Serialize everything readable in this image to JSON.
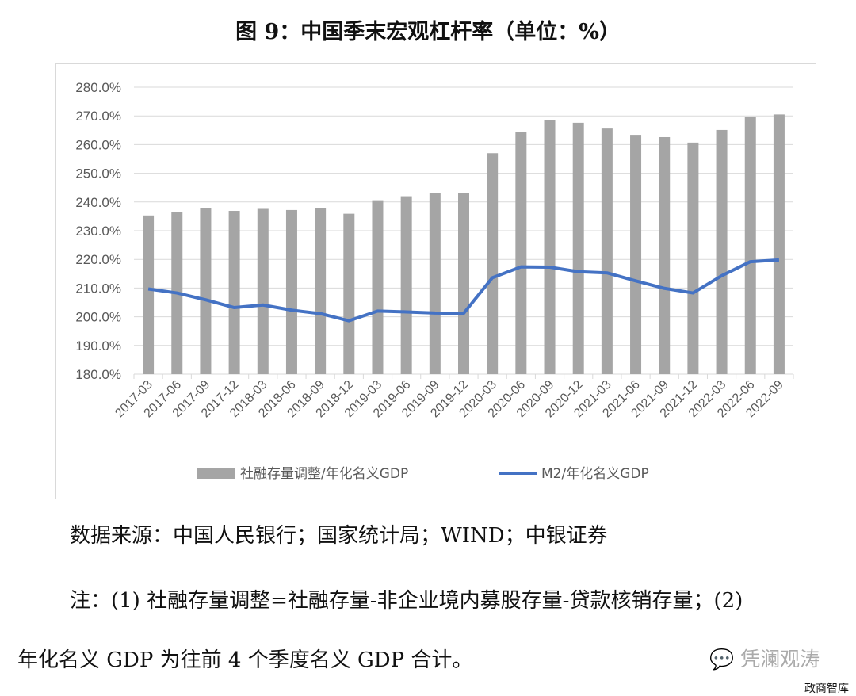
{
  "title": "图 9：中国季末宏观杠杆率（单位：%）",
  "chart_data": {
    "type": "bar+line",
    "title": "图 9：中国季末宏观杠杆率（单位：%）",
    "categories": [
      "2017-03",
      "2017-06",
      "2017-09",
      "2017-12",
      "2018-03",
      "2018-06",
      "2018-09",
      "2018-12",
      "2019-03",
      "2019-06",
      "2019-09",
      "2019-12",
      "2020-03",
      "2020-06",
      "2020-09",
      "2020-12",
      "2021-03",
      "2021-06",
      "2021-09",
      "2021-12",
      "2022-03",
      "2022-06",
      "2022-09"
    ],
    "series": [
      {
        "name": "社融存量调整/年化名义GDP",
        "type": "bar",
        "color": "#a5a5a5",
        "values": [
          235.3,
          236.6,
          237.8,
          236.9,
          237.6,
          237.2,
          237.9,
          235.9,
          240.6,
          242.0,
          243.2,
          243.0,
          257.0,
          264.4,
          268.6,
          267.6,
          265.6,
          263.4,
          262.6,
          260.7,
          265.1,
          269.7,
          270.5
        ]
      },
      {
        "name": "M2/年化名义GDP",
        "type": "line",
        "color": "#4472c4",
        "values": [
          209.7,
          208.3,
          205.9,
          203.2,
          204.1,
          202.3,
          201.1,
          198.6,
          202.0,
          201.7,
          201.3,
          201.2,
          213.6,
          217.4,
          217.3,
          215.7,
          215.3,
          212.5,
          209.9,
          208.3,
          214.3,
          219.2,
          219.8
        ]
      }
    ],
    "ylim": [
      180,
      280
    ],
    "yticks": [
      "180.0%",
      "190.0%",
      "200.0%",
      "210.0%",
      "220.0%",
      "230.0%",
      "240.0%",
      "250.0%",
      "260.0%",
      "270.0%",
      "280.0%"
    ],
    "grid": true,
    "legend": "bottom"
  },
  "source": "数据来源：中国人民银行；国家统计局；WIND；中银证券",
  "note_line1": "注：(1) 社融存量调整=社融存量-非企业境内募股存量-贷款核销存量；(2)",
  "note_line2": "年化名义 GDP 为往前 4 个季度名义 GDP 合计。",
  "watermark": "凭澜观涛",
  "watermark2": "政商智库"
}
